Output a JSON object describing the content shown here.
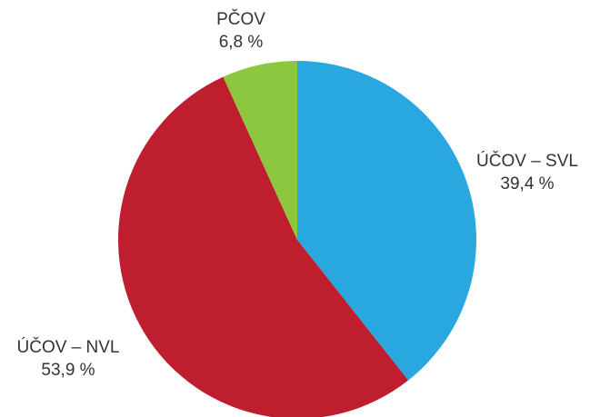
{
  "chart_data": {
    "type": "pie",
    "categories": [
      "ÚČOV – SVL",
      "ÚČOV – NVL",
      "PČOV"
    ],
    "values": [
      39.4,
      53.9,
      6.8
    ],
    "value_labels": [
      "39,4 %",
      "53,9 %",
      "6,8 %"
    ],
    "colors": [
      "#29a8e0",
      "#be1e2d",
      "#8dc63f"
    ]
  }
}
